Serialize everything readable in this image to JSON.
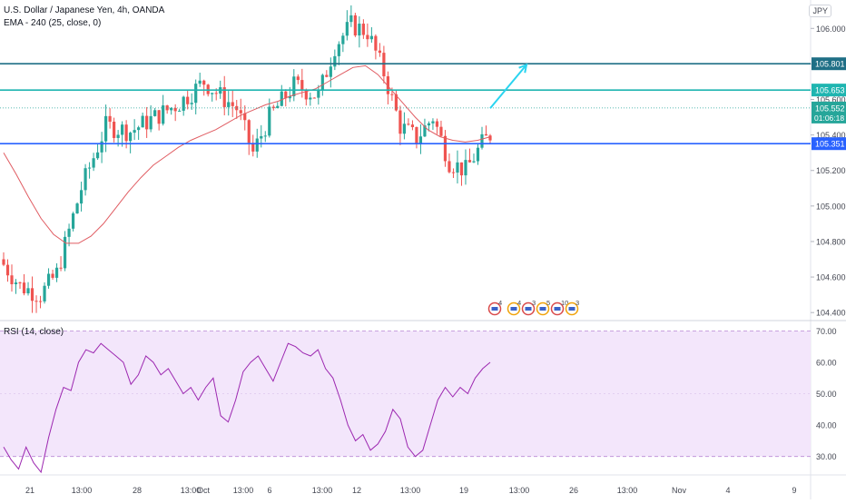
{
  "symbol_title": "U.S. Dollar / Japanese Yen, 4h, OANDA",
  "ema_label": "EMA - 240 (25, close, 0)",
  "rsi_label": "RSI (14, close)",
  "currency": "JPY",
  "colors": {
    "up": "#26a69a",
    "down": "#ef5350",
    "ema": "#e05c62",
    "rsi": "#9c27b0",
    "rsi_band": "#f3e6fb",
    "level_dark": "#1f6f86",
    "level_teal": "#1fb5b0",
    "level_blue": "#2962ff",
    "arrow": "#2ad4f0",
    "current_line": "#26a69a"
  },
  "chart_data": [
    {
      "type": "candlestick",
      "title": "U.S. Dollar / Japanese Yen, 4h, OANDA",
      "ylim": [
        104.36,
        106.16
      ],
      "y_ticks": [
        "106.000",
        "105.800",
        "105.600",
        "105.400",
        "105.200",
        "105.000",
        "104.800",
        "104.600",
        "104.400"
      ],
      "x_ticks": [
        "21",
        "13:00",
        "28",
        "13:00",
        "Oct",
        "13:00",
        "6",
        "13:00",
        "12",
        "13:00",
        "19",
        "13:00",
        "26",
        "13:00",
        "Nov",
        "4",
        "9"
      ],
      "horizontal_levels": [
        {
          "value": 105.801,
          "label": "105.801",
          "color_key": "level_dark"
        },
        {
          "value": 105.653,
          "label": "105.653",
          "color_key": "level_teal"
        },
        {
          "value": 105.351,
          "label": "105.351",
          "color_key": "level_blue"
        }
      ],
      "current_price": {
        "value": 105.552,
        "label": "105.552",
        "countdown": "01:06:18"
      },
      "hidden_labels": [
        "105.6?0",
        "105.400"
      ],
      "ema_series": {
        "name": "EMA - 240 (25, close, 0)",
        "values": [
          105.3,
          105.18,
          105.05,
          104.93,
          104.84,
          104.79,
          104.79,
          104.83,
          104.9,
          104.99,
          105.08,
          105.16,
          105.23,
          105.28,
          105.33,
          105.37,
          105.4,
          105.43,
          105.47,
          105.51,
          105.54,
          105.57,
          105.59,
          105.62,
          105.64,
          105.66,
          105.7,
          105.74,
          105.78,
          105.79,
          105.74,
          105.66,
          105.58,
          105.5,
          105.43,
          105.39,
          105.37,
          105.36,
          105.37,
          105.39
        ]
      },
      "arrow": {
        "from_value": 105.55,
        "to_value": 105.795
      },
      "event_icons": [
        "4",
        "4",
        "3",
        "5",
        "10",
        "3"
      ]
    },
    {
      "type": "line",
      "title": "RSI (14, close)",
      "ylim": [
        25,
        73
      ],
      "y_ticks": [
        "70.00",
        "60.00",
        "50.00",
        "40.00",
        "30.00"
      ],
      "band": [
        30,
        70
      ],
      "series": [
        {
          "name": "RSI (14, close)",
          "values": [
            33,
            29,
            26,
            33,
            28,
            25,
            36,
            45,
            52,
            51,
            60,
            64,
            63,
            66,
            64,
            62,
            60,
            53,
            56,
            62,
            60,
            56,
            58,
            54,
            50,
            52,
            48,
            52,
            55,
            43,
            41,
            48,
            57,
            60,
            62,
            58,
            54,
            60,
            66,
            65,
            63,
            62,
            64,
            58,
            55,
            48,
            40,
            35,
            37,
            32,
            34,
            38,
            45,
            42,
            33,
            30,
            32,
            40,
            48,
            52,
            49,
            52,
            50,
            55,
            58,
            60
          ]
        }
      ]
    }
  ]
}
